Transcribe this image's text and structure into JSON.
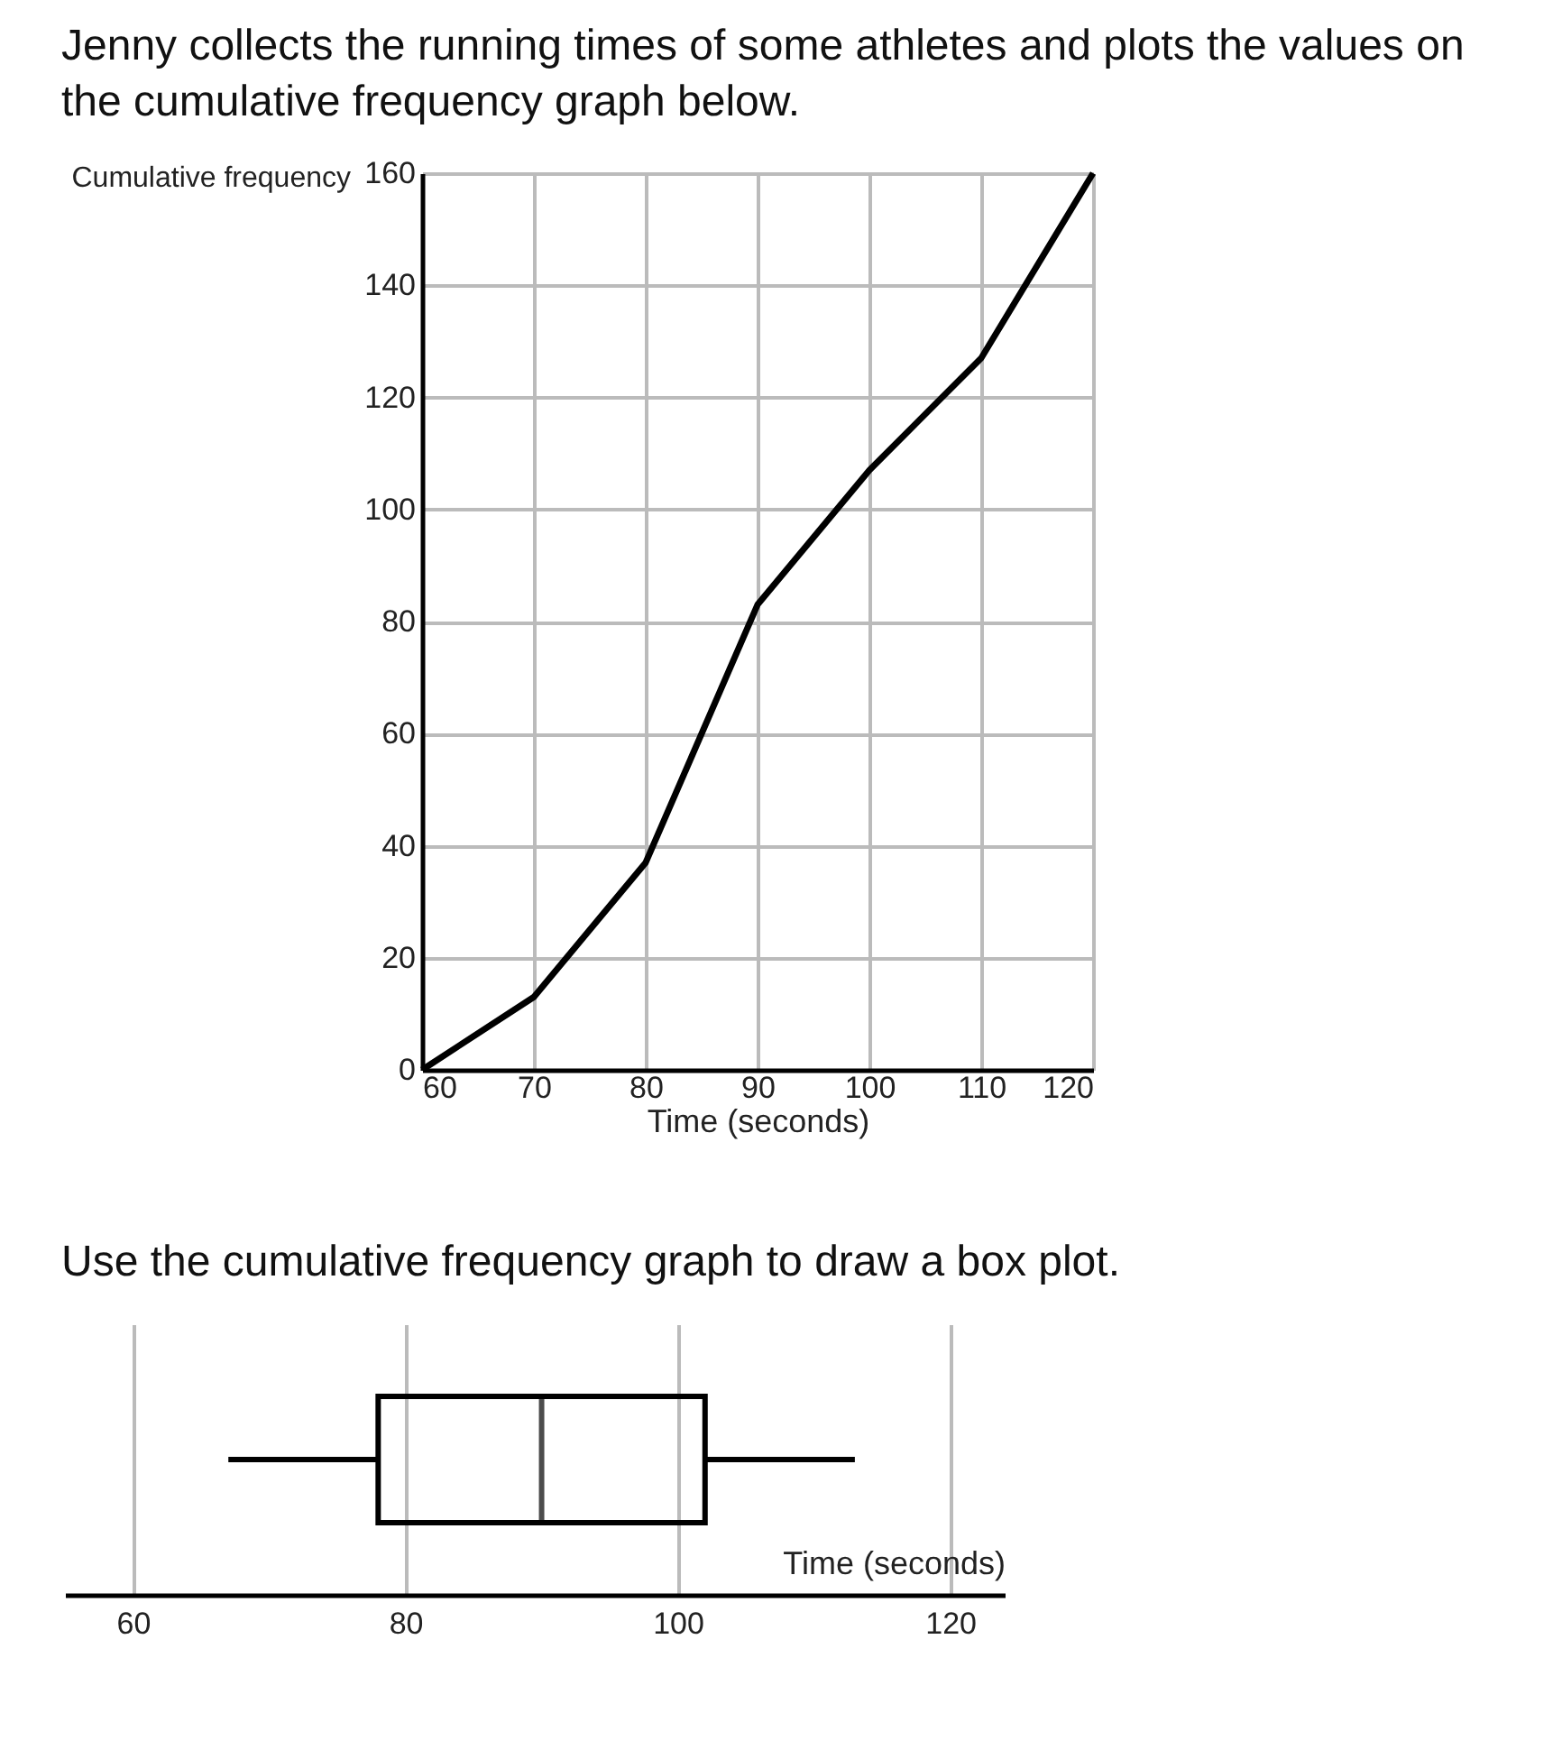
{
  "chart_data": [
    {
      "type": "line",
      "title": "Jenny collects the running times of some athletes and plots the values on the cumulative frequency graph below.",
      "xlabel": "Time (seconds)",
      "ylabel": "Cumulative frequency",
      "x": [
        60,
        70,
        80,
        90,
        100,
        110,
        120
      ],
      "series": [
        {
          "color": "#000000",
          "values": [
            0,
            13,
            37,
            83,
            107,
            127,
            160
          ]
        }
      ],
      "xlim": [
        60,
        120
      ],
      "ylim": [
        0,
        160
      ],
      "xticks": [
        60,
        70,
        80,
        90,
        100,
        110,
        120
      ],
      "yticks": [
        0,
        20,
        40,
        60,
        80,
        100,
        120,
        140,
        160
      ],
      "grid": true
    },
    {
      "type": "box",
      "title": "Use the cumulative frequency graph to draw a box plot.",
      "xlabel": "Time (seconds)",
      "orientation": "horizontal",
      "categories": [
        null
      ],
      "boxes": [
        {
          "low": 67,
          "q1": 78,
          "median": 90,
          "q3": 102,
          "high": 113
        }
      ],
      "xlim": [
        55,
        124
      ],
      "xticks": [
        60,
        80,
        100,
        120
      ],
      "tick_labels": "x",
      "grid": "x"
    }
  ]
}
